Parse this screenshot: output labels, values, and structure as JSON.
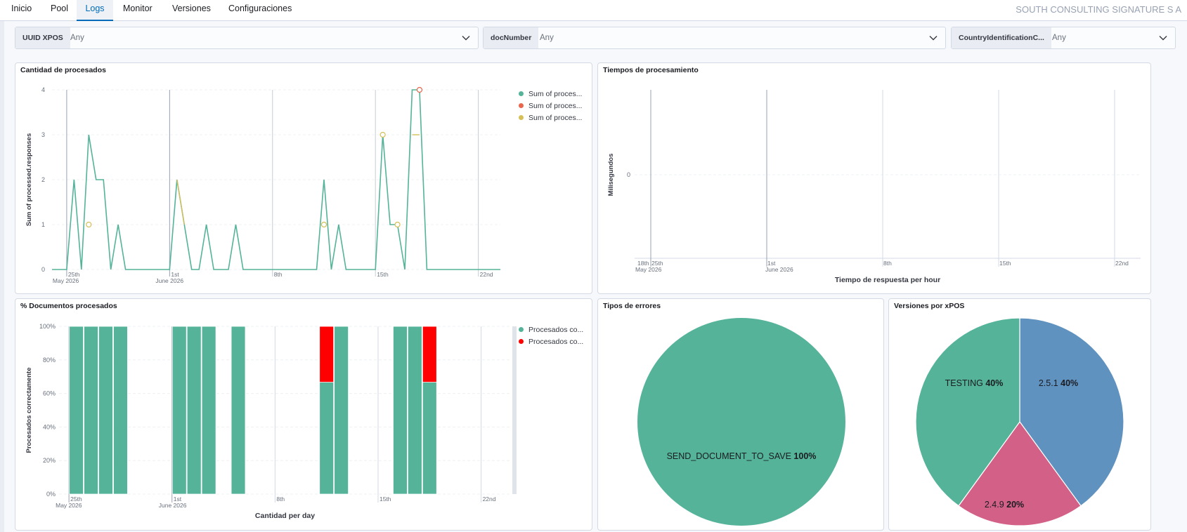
{
  "nav": {
    "tabs": [
      {
        "label": "Inicio"
      },
      {
        "label": "Pool"
      },
      {
        "label": "Logs",
        "active": true
      },
      {
        "label": "Monitor"
      },
      {
        "label": "Versiones"
      },
      {
        "label": "Configuraciones"
      }
    ],
    "company": "SOUTH CONSULTING SIGNATURE S A"
  },
  "filters": [
    {
      "label": "UUID XPOS",
      "value": "Any"
    },
    {
      "label": "docNumber",
      "value": "Any"
    },
    {
      "label": "CountryIdentificationC...",
      "value": "Any"
    }
  ],
  "colors": {
    "green": "#54b399",
    "red": "#e7664c",
    "yellow": "#d6bf57",
    "bar_red": "#ff0000",
    "blue": "#6092c0",
    "pink": "#d36086"
  },
  "panels": {
    "processed": {
      "title": "Cantidad de procesados"
    },
    "time": {
      "title": "Tiempos de procesamiento"
    },
    "docs": {
      "title": "% Documentos procesados"
    },
    "errors": {
      "title": "Tipos de errores"
    },
    "versions": {
      "title": "Versiones por xPOS"
    }
  },
  "chart_data": [
    {
      "type": "line",
      "title": "Cantidad de procesados",
      "ylabel": "Sum of processed.responses",
      "xlabel": "",
      "ylim": [
        0,
        4
      ],
      "y_ticks": [
        "0",
        "1",
        "2",
        "3",
        "4"
      ],
      "x_ticks": [
        {
          "day": 25,
          "label": "25th",
          "sub": "May 2026"
        },
        {
          "day": 32,
          "label": "1st",
          "sub": "June 2026"
        },
        {
          "day": 39,
          "label": "8th",
          "sub": ""
        },
        {
          "day": 46,
          "label": "15th",
          "sub": ""
        },
        {
          "day": 53,
          "label": "22nd",
          "sub": ""
        }
      ],
      "x_range": [
        24,
        54.5
      ],
      "legend": [
        "Sum of proces...",
        "Sum of proces...",
        "Sum of proces..."
      ],
      "series": [
        {
          "name": "Sum of proces...",
          "color": "#54b399",
          "points": [
            [
              24,
              0
            ],
            [
              25,
              0
            ],
            [
              25.5,
              2
            ],
            [
              26,
              0
            ],
            [
              26.5,
              3
            ],
            [
              27,
              2
            ],
            [
              27.5,
              2
            ],
            [
              28,
              0
            ],
            [
              28.5,
              1
            ],
            [
              29,
              0
            ],
            [
              32,
              0
            ],
            [
              32.5,
              2
            ],
            [
              33,
              1
            ],
            [
              33.5,
              0
            ],
            [
              34,
              0
            ],
            [
              34.5,
              1
            ],
            [
              35,
              0
            ],
            [
              36,
              0
            ],
            [
              36.5,
              1
            ],
            [
              37,
              0
            ],
            [
              42,
              0
            ],
            [
              42.5,
              2
            ],
            [
              43,
              0
            ],
            [
              43.5,
              1
            ],
            [
              44,
              0
            ],
            [
              46,
              0
            ],
            [
              46.5,
              3
            ],
            [
              47,
              1
            ],
            [
              47.5,
              1
            ],
            [
              48,
              0
            ],
            [
              48.5,
              4
            ],
            [
              49,
              4
            ],
            [
              49.5,
              0
            ],
            [
              54.5,
              0
            ]
          ]
        },
        {
          "name": "Sum of proces...",
          "color": "#e7664c",
          "points": [
            [
              49,
              4
            ]
          ]
        },
        {
          "name": "Sum of proces...",
          "color": "#d6bf57",
          "points": [
            [
              26.5,
              1
            ],
            [
              32.5,
              2
            ],
            [
              33,
              1
            ],
            [
              42.5,
              1
            ],
            [
              46.5,
              3
            ],
            [
              47.5,
              1
            ],
            [
              48.5,
              3
            ],
            [
              49,
              3
            ]
          ]
        }
      ]
    },
    {
      "type": "line",
      "title": "Tiempos de procesamiento",
      "ylabel": "Milisegundos",
      "xlabel": "Tiempo de respuesta per hour",
      "y_ticks": [
        "0"
      ],
      "x_ticks": [
        {
          "label": "18th",
          "sub": "May 2026"
        },
        {
          "label": "25th",
          "sub": ""
        },
        {
          "label": "1st",
          "sub": "June 2026"
        },
        {
          "label": "8th",
          "sub": ""
        },
        {
          "label": "15th",
          "sub": ""
        },
        {
          "label": "22nd",
          "sub": ""
        }
      ],
      "series": []
    },
    {
      "type": "bar",
      "title": "% Documentos procesados",
      "ylabel": "Procesados correctamente",
      "xlabel": "Cantidad per day",
      "ylim": [
        0,
        100
      ],
      "y_ticks": [
        "0%",
        "20%",
        "40%",
        "60%",
        "80%",
        "100%"
      ],
      "x_ticks": [
        {
          "day": 25,
          "label": "25th",
          "sub": "May 2026"
        },
        {
          "day": 32,
          "label": "1st",
          "sub": "June 2026"
        },
        {
          "day": 39,
          "label": "8th",
          "sub": ""
        },
        {
          "day": 46,
          "label": "15th",
          "sub": ""
        },
        {
          "day": 53,
          "label": "22nd",
          "sub": ""
        }
      ],
      "x_range": [
        23.8,
        54.5
      ],
      "legend": [
        "Procesados co...",
        "Procesados co..."
      ],
      "bars": [
        {
          "day": 25,
          "ok": 100,
          "err": 0
        },
        {
          "day": 26,
          "ok": 100,
          "err": 0
        },
        {
          "day": 27,
          "ok": 100,
          "err": 0
        },
        {
          "day": 28,
          "ok": 100,
          "err": 0
        },
        {
          "day": 32,
          "ok": 100,
          "err": 0
        },
        {
          "day": 33,
          "ok": 100,
          "err": 0
        },
        {
          "day": 34,
          "ok": 100,
          "err": 0
        },
        {
          "day": 36,
          "ok": 100,
          "err": 0
        },
        {
          "day": 42,
          "ok": 66.7,
          "err": 33.3
        },
        {
          "day": 43,
          "ok": 100,
          "err": 0
        },
        {
          "day": 47,
          "ok": 100,
          "err": 0
        },
        {
          "day": 48,
          "ok": 100,
          "err": 0
        },
        {
          "day": 49,
          "ok": 66.7,
          "err": 33.3
        }
      ]
    },
    {
      "type": "pie",
      "title": "Tipos de errores",
      "slices": [
        {
          "label": "SEND_DOCUMENT_TO_SAVE",
          "pct": "100%",
          "value": 100,
          "color": "#54b399"
        }
      ]
    },
    {
      "type": "pie",
      "title": "Versiones por xPOS",
      "slices": [
        {
          "label": "2.5.1",
          "pct": "40%",
          "value": 40,
          "color": "#6092c0"
        },
        {
          "label": "2.4.9",
          "pct": "20%",
          "value": 20,
          "color": "#d36086"
        },
        {
          "label": "TESTING",
          "pct": "40%",
          "value": 40,
          "color": "#54b399"
        }
      ]
    }
  ]
}
